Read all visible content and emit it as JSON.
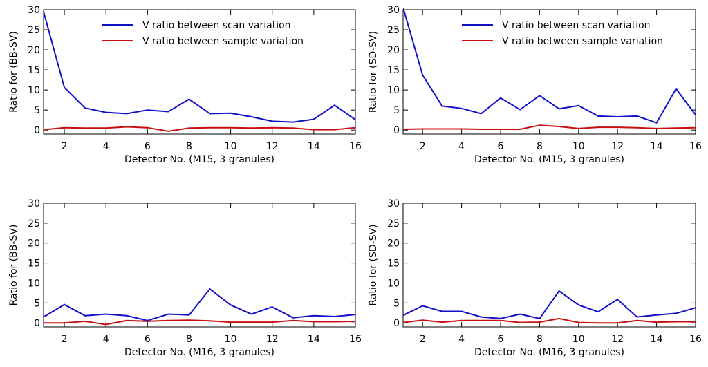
{
  "chart_data": [
    {
      "type": "line",
      "xlabel": "Detector No. (M15, 3 granules)",
      "ylabel": "Ratio for (BB-SV)",
      "xlim": [
        1,
        16
      ],
      "ylim": [
        -1,
        30
      ],
      "xticks": [
        2,
        4,
        6,
        8,
        10,
        12,
        14,
        16
      ],
      "yticks": [
        0,
        5,
        10,
        15,
        20,
        25,
        30
      ],
      "legend": [
        "V ratio between scan variation",
        "V ratio between sample variation"
      ],
      "legend_position": "top-right",
      "x": [
        1,
        2,
        3,
        4,
        5,
        6,
        7,
        8,
        9,
        10,
        11,
        12,
        13,
        14,
        15,
        16
      ],
      "series": [
        {
          "name": "V ratio between scan variation",
          "color": "#1010c8",
          "values": [
            29.5,
            10.6,
            5.5,
            4.4,
            4.1,
            5.0,
            4.6,
            7.7,
            4.1,
            4.2,
            3.3,
            2.2,
            2.0,
            2.7,
            6.2,
            2.6
          ]
        },
        {
          "name": "V ratio between sample variation",
          "color": "#c81010",
          "values": [
            0.1,
            0.6,
            0.5,
            0.5,
            0.8,
            0.6,
            -0.3,
            0.5,
            0.6,
            0.6,
            0.5,
            0.6,
            0.5,
            0.1,
            0.1,
            0.6
          ]
        }
      ]
    },
    {
      "type": "line",
      "xlabel": "Detector No. (M15, 3 granules)",
      "ylabel": "Ratio for (SD-SV)",
      "xlim": [
        1,
        16
      ],
      "ylim": [
        -1,
        30
      ],
      "xticks": [
        2,
        4,
        6,
        8,
        10,
        12,
        14,
        16
      ],
      "yticks": [
        0,
        5,
        10,
        15,
        20,
        25,
        30
      ],
      "legend": [
        "V ratio between scan variation",
        "V ratio between sample variation"
      ],
      "legend_position": "top-right",
      "x": [
        1,
        2,
        3,
        4,
        5,
        6,
        7,
        8,
        9,
        10,
        11,
        12,
        13,
        14,
        15,
        16
      ],
      "series": [
        {
          "name": "V ratio between scan variation",
          "color": "#1010c8",
          "values": [
            30.5,
            13.7,
            6.0,
            5.4,
            4.1,
            8.0,
            5.1,
            8.6,
            5.3,
            6.1,
            3.5,
            3.3,
            3.5,
            1.8,
            10.3,
            3.8
          ]
        },
        {
          "name": "V ratio between sample variation",
          "color": "#c81010",
          "values": [
            0.2,
            0.3,
            0.3,
            0.3,
            0.2,
            0.2,
            0.2,
            1.2,
            0.9,
            0.4,
            0.7,
            0.7,
            0.6,
            0.4,
            0.5,
            0.6
          ]
        }
      ]
    },
    {
      "type": "line",
      "xlabel": "Detector No. (M16, 3 granules)",
      "ylabel": "Ratio for (BB-SV)",
      "xlim": [
        1,
        16
      ],
      "ylim": [
        -1,
        30
      ],
      "xticks": [
        2,
        4,
        6,
        8,
        10,
        12,
        14,
        16
      ],
      "yticks": [
        0,
        5,
        10,
        15,
        20,
        25,
        30
      ],
      "legend": [],
      "x": [
        1,
        2,
        3,
        4,
        5,
        6,
        7,
        8,
        9,
        10,
        11,
        12,
        13,
        14,
        15,
        16
      ],
      "series": [
        {
          "name": "V ratio between scan variation",
          "color": "#1010c8",
          "values": [
            1.5,
            4.6,
            1.8,
            2.2,
            1.8,
            0.6,
            2.2,
            2.0,
            8.5,
            4.5,
            2.2,
            4.0,
            1.3,
            1.8,
            1.6,
            2.1
          ]
        },
        {
          "name": "V ratio between sample variation",
          "color": "#c81010",
          "values": [
            0.0,
            0.0,
            0.4,
            -0.4,
            0.6,
            0.4,
            0.6,
            0.7,
            0.5,
            0.2,
            0.2,
            0.2,
            0.6,
            0.3,
            0.3,
            0.4
          ]
        }
      ]
    },
    {
      "type": "line",
      "xlabel": "Detector No. (M16, 3 granules)",
      "ylabel": "Ratio for (SD-SV)",
      "xlim": [
        1,
        16
      ],
      "ylim": [
        -1,
        30
      ],
      "xticks": [
        2,
        4,
        6,
        8,
        10,
        12,
        14,
        16
      ],
      "yticks": [
        0,
        5,
        10,
        15,
        20,
        25,
        30
      ],
      "legend": [],
      "x": [
        1,
        2,
        3,
        4,
        5,
        6,
        7,
        8,
        9,
        10,
        11,
        12,
        13,
        14,
        15,
        16
      ],
      "series": [
        {
          "name": "V ratio between scan variation",
          "color": "#1010c8",
          "values": [
            1.9,
            4.3,
            2.9,
            2.9,
            1.5,
            1.1,
            2.2,
            1.1,
            8.0,
            4.5,
            2.8,
            5.9,
            1.5,
            2.0,
            2.4,
            3.8
          ]
        },
        {
          "name": "V ratio between sample variation",
          "color": "#c81010",
          "values": [
            0.1,
            0.7,
            0.2,
            0.6,
            0.6,
            0.6,
            0.1,
            0.2,
            1.1,
            0.1,
            0.0,
            0.0,
            0.6,
            0.2,
            0.3,
            0.3
          ]
        }
      ]
    }
  ]
}
